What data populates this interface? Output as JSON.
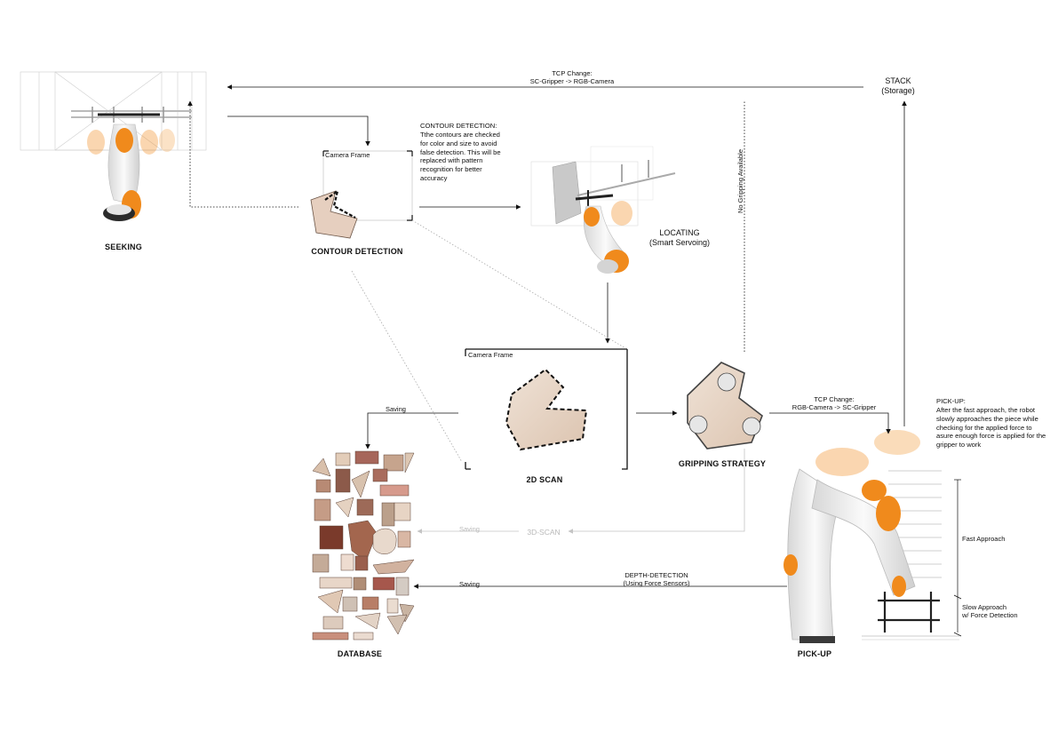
{
  "colors": {
    "robot_orange": "#f08a1c",
    "robot_white": "#ececec",
    "wood_light": "#e6d3c3",
    "wood_mid": "#c99a7a",
    "wood_dark": "#8a4a35",
    "arrow": "#111111",
    "inactive": "#c4c4c4"
  },
  "stages": {
    "seeking": "SEEKING",
    "contour_detection": "CONTOUR DETECTION",
    "locating": "LOCATING",
    "locating_sub": "(Smart Servoing)",
    "scan_2d": "2D SCAN",
    "gripping_strategy": "GRIPPING STRATEGY",
    "database": "DATABASE",
    "pick_up": "PICK-UP",
    "stack": "STACK",
    "stack_sub": "(Storage)",
    "scan_3d": "3D-SCAN"
  },
  "camera_frame_label": "Camera Frame",
  "annotations": {
    "tcp_top_1": "TCP Change:",
    "tcp_top_2": "SC-Gripper -> RGB-Camera",
    "tcp_right_1": "TCP Change:",
    "tcp_right_2": "RGB-Camera -> SC-Gripper",
    "no_gripping": "No Gripping Available",
    "saving_top": "Saving",
    "saving_3d": "Saving",
    "saving_bottom": "Saving",
    "depth_1": "DEPTH-DETECTION",
    "depth_2": "(Using Force Sensors)",
    "fast_approach": "Fast Approach",
    "slow_approach_1": "Slow Approach",
    "slow_approach_2": "w/ Force Detection"
  },
  "contour_note": {
    "title": "CONTOUR DETECTION:",
    "body": "Tthe contours are checked for color and size to avoid false detection. This will be replaced with pattern recognition for better accuracy"
  },
  "pickup_note": {
    "title": "PICK-UP:",
    "body": "After the fast approach, the robot slowly approaches the piece while checking for the applied force to asure enough force is applied for the gripper to work"
  },
  "icons": [
    "robot-arm-icon",
    "gripper-icon",
    "wood-piece-icon",
    "arrow-icon"
  ]
}
